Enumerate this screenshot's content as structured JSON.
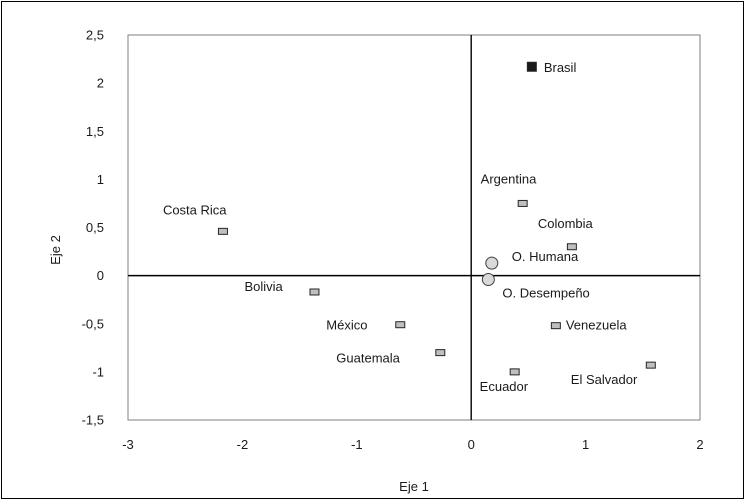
{
  "chart_data": {
    "type": "scatter",
    "title": "",
    "xlabel": "Eje 1",
    "ylabel": "Eje 2",
    "xlim": [
      -3,
      2
    ],
    "ylim": [
      -1.5,
      2.5
    ],
    "x_ticks": [
      "-3",
      "-2",
      "-1",
      "0",
      "1",
      "2"
    ],
    "y_ticks": [
      "2,5",
      "2",
      "1,5",
      "1",
      "0,5",
      "0",
      "-0,5",
      "-1",
      "-1,5"
    ],
    "grid": false,
    "legend": "none",
    "points": [
      {
        "label": "Brasil",
        "x": 0.53,
        "y": 2.17,
        "marker": "square-black"
      },
      {
        "label": "Argentina",
        "x": 0.45,
        "y": 0.75,
        "marker": "square-gray"
      },
      {
        "label": "Colombia",
        "x": 0.88,
        "y": 0.3,
        "marker": "square-gray"
      },
      {
        "label": "Costa Rica",
        "x": -2.17,
        "y": 0.46,
        "marker": "square-gray"
      },
      {
        "label": "Bolivia",
        "x": -1.37,
        "y": -0.17,
        "marker": "square-gray"
      },
      {
        "label": "México",
        "x": -0.62,
        "y": -0.51,
        "marker": "square-gray"
      },
      {
        "label": "Guatemala",
        "x": -0.27,
        "y": -0.8,
        "marker": "square-gray"
      },
      {
        "label": "Ecuador",
        "x": 0.38,
        "y": -1.0,
        "marker": "square-gray"
      },
      {
        "label": "Venezuela",
        "x": 0.74,
        "y": -0.52,
        "marker": "square-gray"
      },
      {
        "label": "El Salvador",
        "x": 1.57,
        "y": -0.93,
        "marker": "square-gray"
      },
      {
        "label": "O. Humana",
        "x": 0.18,
        "y": 0.13,
        "marker": "circle-gray"
      },
      {
        "label": "O. Desempeño",
        "x": 0.15,
        "y": -0.04,
        "marker": "circle-gray"
      }
    ]
  }
}
